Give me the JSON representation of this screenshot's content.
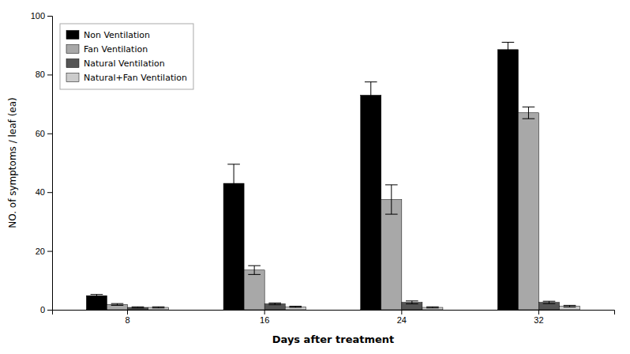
{
  "chart_data": {
    "type": "bar",
    "xlabel": "Days after treatment",
    "ylabel": "NO. of symptoms / leaf (ea)",
    "categories": [
      "8",
      "16",
      "24",
      "32"
    ],
    "series": [
      {
        "name": "Non Ventilation",
        "color": "#000000",
        "values": [
          4.8,
          43.0,
          73.0,
          88.5
        ],
        "errors": [
          0.4,
          6.5,
          4.5,
          2.5
        ]
      },
      {
        "name": "Fan Ventilation",
        "color": "#a8a8a8",
        "values": [
          1.8,
          13.5,
          37.5,
          67.0
        ],
        "errors": [
          0.3,
          1.5,
          5.0,
          2.0
        ]
      },
      {
        "name": "Natural Ventilation",
        "color": "#555555",
        "values": [
          0.8,
          2.0,
          2.5,
          2.5
        ],
        "errors": [
          0.2,
          0.3,
          0.5,
          0.4
        ]
      },
      {
        "name": "Natural+Fan Ventilation",
        "color": "#cccccc",
        "values": [
          0.8,
          1.0,
          0.8,
          1.2
        ],
        "errors": [
          0.2,
          0.2,
          0.2,
          0.3
        ]
      }
    ],
    "ylim": [
      0,
      100
    ],
    "yticks": [
      0,
      20,
      40,
      60,
      80,
      100
    ],
    "grid": false,
    "legend": "upper left"
  }
}
